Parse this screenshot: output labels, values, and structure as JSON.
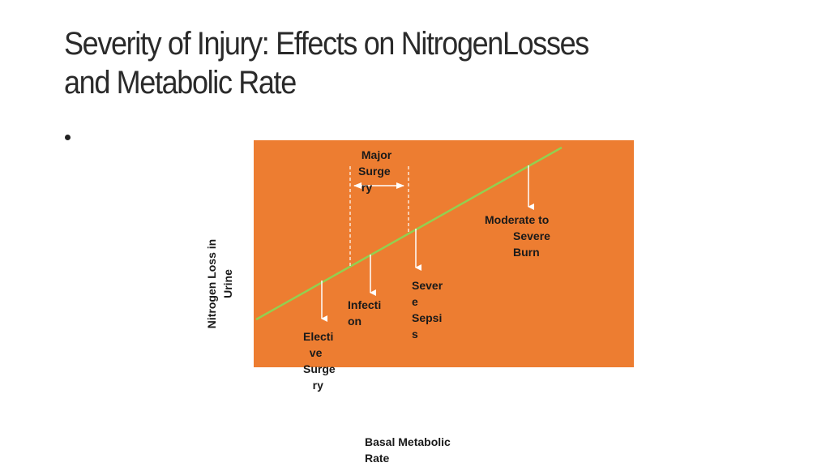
{
  "slide": {
    "title_line1": "Severity of Injury: Effects on NitrogenLosses",
    "title_line2": "and Metabolic Rate"
  },
  "diagram": {
    "x_axis_label": "Basal Metabolic\nRate",
    "y_axis_label": "Nitrogen Loss in\nUrine",
    "labels": {
      "major_surgery": " Major\nSurge\n ry",
      "moderate_severe_burn": "Moderate to\n         Severe\n         Burn",
      "severe_sepsis": "Sever\ne\nSepsi\ns",
      "infection": "Infecti\non",
      "elective_surgery": "Electi\n  ve\nSurge\n   ry"
    },
    "colors": {
      "plot_background": "#ed7d31",
      "trend_line": "#92d050",
      "arrows": "#ffffff"
    }
  }
}
